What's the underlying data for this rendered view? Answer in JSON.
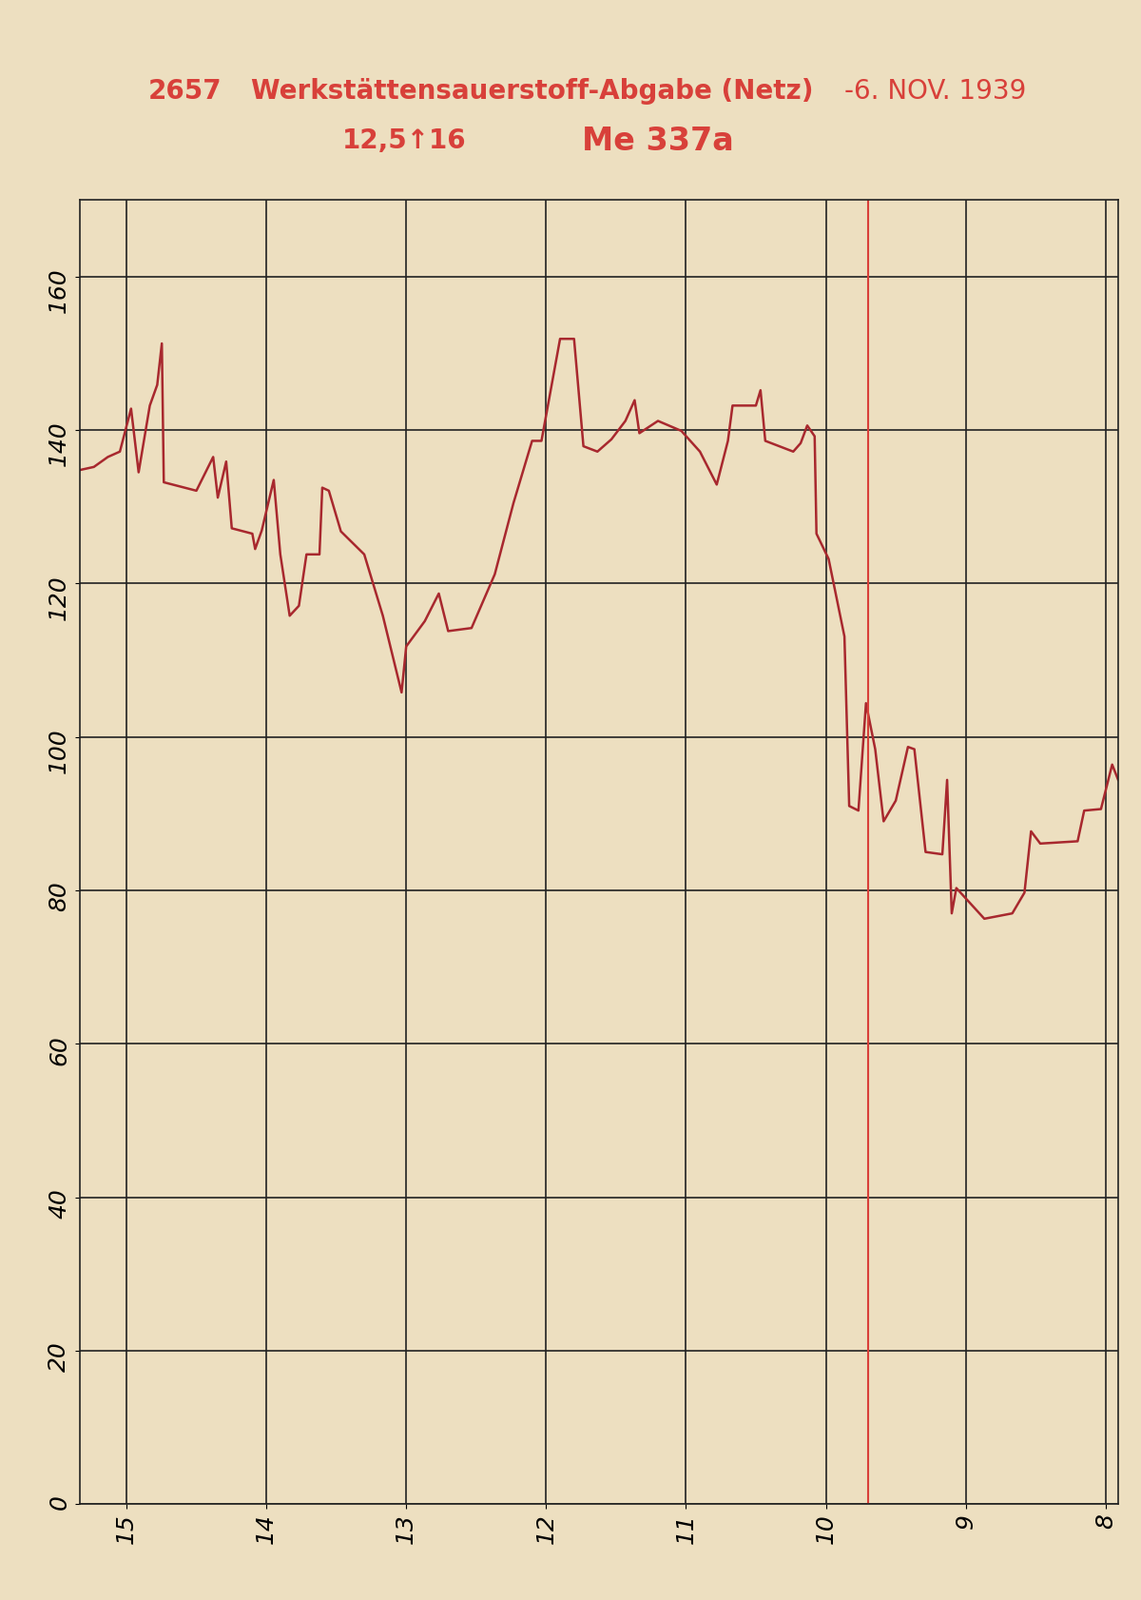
{
  "chart_data": {
    "type": "line",
    "title": "Werkstättensauerstoff-Abgabe (Netz)",
    "annotations": [
      "2657",
      "-6. NOV. 1939",
      "12,5↑16",
      "Me 337a"
    ],
    "x": [
      15.333,
      15.233,
      15.133,
      15.047,
      14.967,
      14.913,
      14.833,
      14.78,
      14.747,
      14.733,
      14.5,
      14.38,
      14.347,
      14.287,
      14.247,
      14.1,
      14.08,
      14.033,
      13.947,
      13.9,
      13.833,
      13.767,
      13.713,
      13.62,
      13.6,
      13.553,
      13.467,
      13.3,
      13.167,
      13.033,
      13.0,
      12.867,
      12.767,
      12.7,
      12.533,
      12.367,
      12.233,
      12.1,
      12.033,
      11.9,
      11.8,
      11.733,
      11.633,
      11.533,
      11.433,
      11.367,
      11.333,
      11.2,
      11.033,
      10.9,
      10.78,
      10.7,
      10.667,
      10.5,
      10.467,
      10.433,
      10.233,
      10.18,
      10.133,
      10.08,
      10.067,
      9.98,
      9.867,
      9.833,
      9.767,
      9.713,
      9.647,
      9.587,
      9.5,
      9.413,
      9.367,
      9.287,
      9.167,
      9.133,
      9.1,
      9.067,
      8.867,
      8.667,
      8.58,
      8.533,
      8.467,
      8.2,
      8.153,
      8.033,
      7.953,
      7.91
    ],
    "values": [
      134.8,
      135.2,
      136.5,
      137.2,
      142.8,
      134.5,
      143.2,
      145.9,
      151.3,
      133.2,
      132.1,
      136.5,
      131.2,
      135.9,
      127.2,
      126.5,
      124.5,
      126.9,
      133.5,
      123.8,
      115.8,
      117.1,
      123.8,
      123.8,
      132.5,
      132.1,
      126.8,
      123.8,
      115.8,
      105.8,
      111.8,
      115.1,
      118.7,
      113.8,
      114.2,
      121.2,
      130.5,
      138.6,
      138.6,
      151.9,
      151.9,
      137.9,
      137.2,
      138.8,
      141.2,
      143.9,
      139.6,
      141.2,
      139.9,
      137.2,
      132.9,
      138.6,
      143.2,
      143.2,
      145.2,
      138.6,
      137.2,
      138.3,
      140.6,
      139.2,
      126.5,
      123.2,
      113.1,
      91.0,
      90.4,
      104.4,
      98.4,
      89.0,
      91.7,
      98.7,
      98.4,
      85.0,
      84.7,
      94.4,
      77.0,
      80.3,
      76.3,
      77.0,
      79.7,
      87.7,
      86.1,
      86.4,
      90.4,
      90.6,
      96.4,
      94.4
    ],
    "color": "#a8282e",
    "reference_x": 9.7,
    "xlim": [
      15.333,
      7.91
    ],
    "xticks": [
      15,
      14,
      13,
      12,
      11,
      10,
      9,
      8
    ],
    "ylim": [
      0,
      170
    ],
    "yticks": [
      0,
      20,
      40,
      60,
      80,
      100,
      120,
      140,
      160
    ],
    "grid": true
  }
}
